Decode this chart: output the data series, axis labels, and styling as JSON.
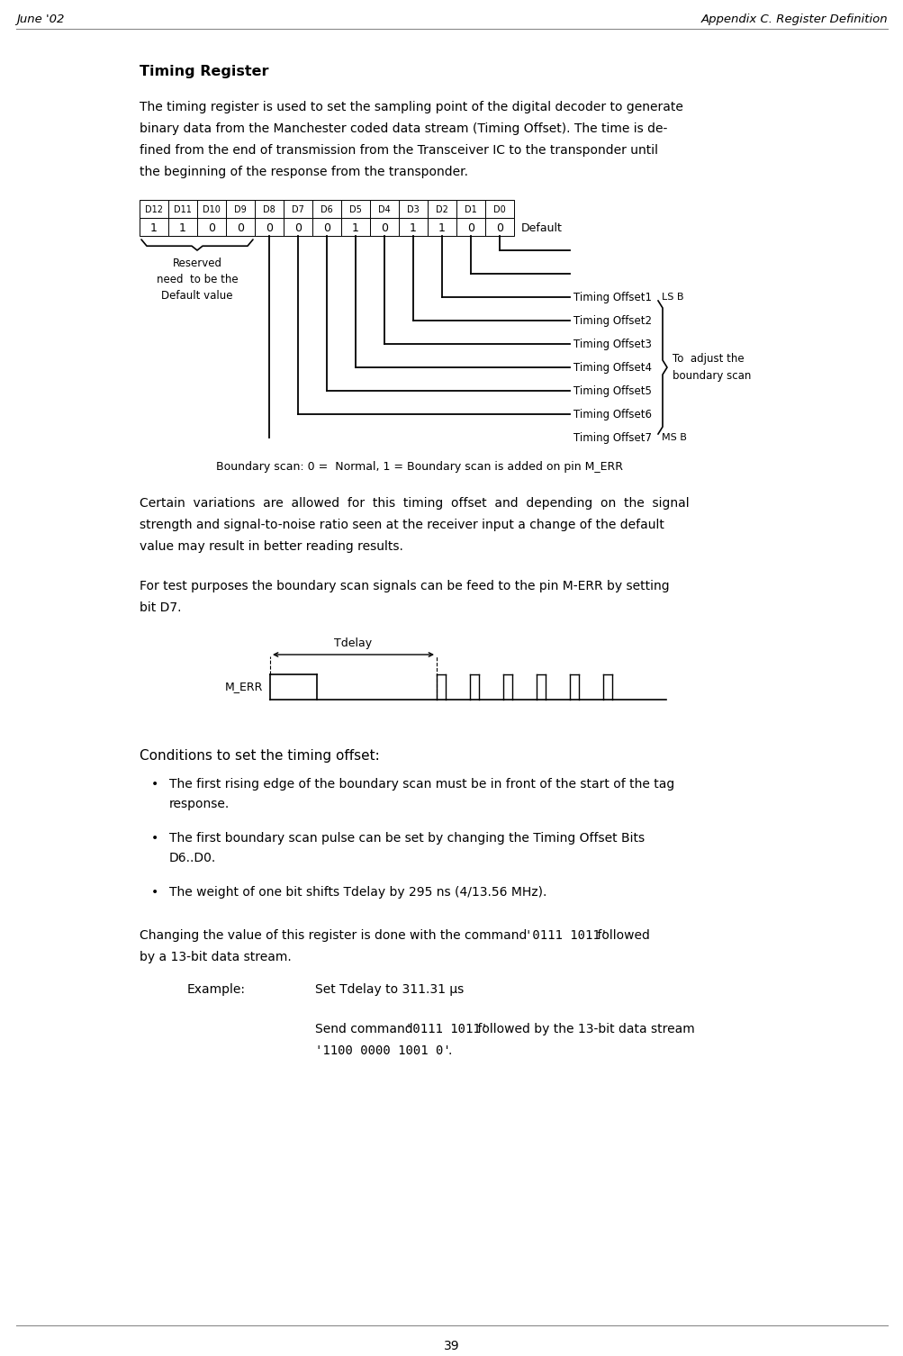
{
  "page_num": "39",
  "header_left": "June '02",
  "header_right": "Appendix C. Register Definition",
  "section_title": "Timing Register",
  "para1_lines": [
    "The timing register is used to set the sampling point of the digital decoder to generate",
    "binary data from the Manchester coded data stream (Timing Offset). The time is de-",
    "fined from the end of transmission from the Transceiver IC to the transponder until",
    "the beginning of the response from the transponder."
  ],
  "register_headers": [
    "D12",
    "D11",
    "D10",
    "D9",
    "D8",
    "D7",
    "D6",
    "D5",
    "D4",
    "D3",
    "D2",
    "D1",
    "D0"
  ],
  "register_values": [
    "1",
    "1",
    "0",
    "0",
    "0",
    "0",
    "0",
    "1",
    "0",
    "1",
    "1",
    "0",
    "0"
  ],
  "reserved_label_lines": [
    "Reserved",
    "need  to be the",
    "Default value"
  ],
  "timing_offsets": [
    "Timing Offset1",
    "Timing Offset2",
    "Timing Offset3",
    "Timing Offset4",
    "Timing Offset5",
    "Timing Offset6",
    "Timing Offset7"
  ],
  "lsb_label": "LS B",
  "msb_label": "MS B",
  "bracket_label_lines": [
    "To  adjust the",
    "boundary scan"
  ],
  "boundary_note": "Boundary scan: 0 =  Normal, 1 = Boundary scan is added on pin M_ERR",
  "para2_lines": [
    "Certain  variations  are  allowed  for  this  timing  offset  and  depending  on  the  signal",
    "strength and signal-to-noise ratio seen at the receiver input a change of the default",
    "value may result in better reading results."
  ],
  "para3_lines": [
    "For test purposes the boundary scan signals can be feed to the pin M-ERR by setting",
    "bit D7."
  ],
  "tdelay_label": "Tdelay",
  "merr_label": "M_ERR",
  "conditions_title": "Conditions to set the timing offset:",
  "bullet1_lines": [
    "The first rising edge of the boundary scan must be in front of the start of the tag",
    "response."
  ],
  "bullet2_lines": [
    "The first boundary scan pulse can be set by changing the Timing Offset Bits",
    "D6..D0."
  ],
  "bullet3": "The weight of one bit shifts Tdelay by 295 ns (4/13.56 MHz).",
  "para4_text": "Changing the value of this register is done with the command ",
  "para4_code": "'0111 1011'",
  "para4_end": " followed",
  "para4_line2": "by a 13-bit data stream.",
  "example_label": "Example:",
  "example_text": "Set Tdelay to 311.31 μs",
  "send_text": "Send command ",
  "send_code1": "'0111 1011'",
  "send_mid": " followed by the 13-bit data stream",
  "send_code2": "'1100 0000 1001 0'",
  "send_end": ".",
  "bg_color": "#ffffff",
  "text_color": "#000000",
  "line_color": "#888888"
}
